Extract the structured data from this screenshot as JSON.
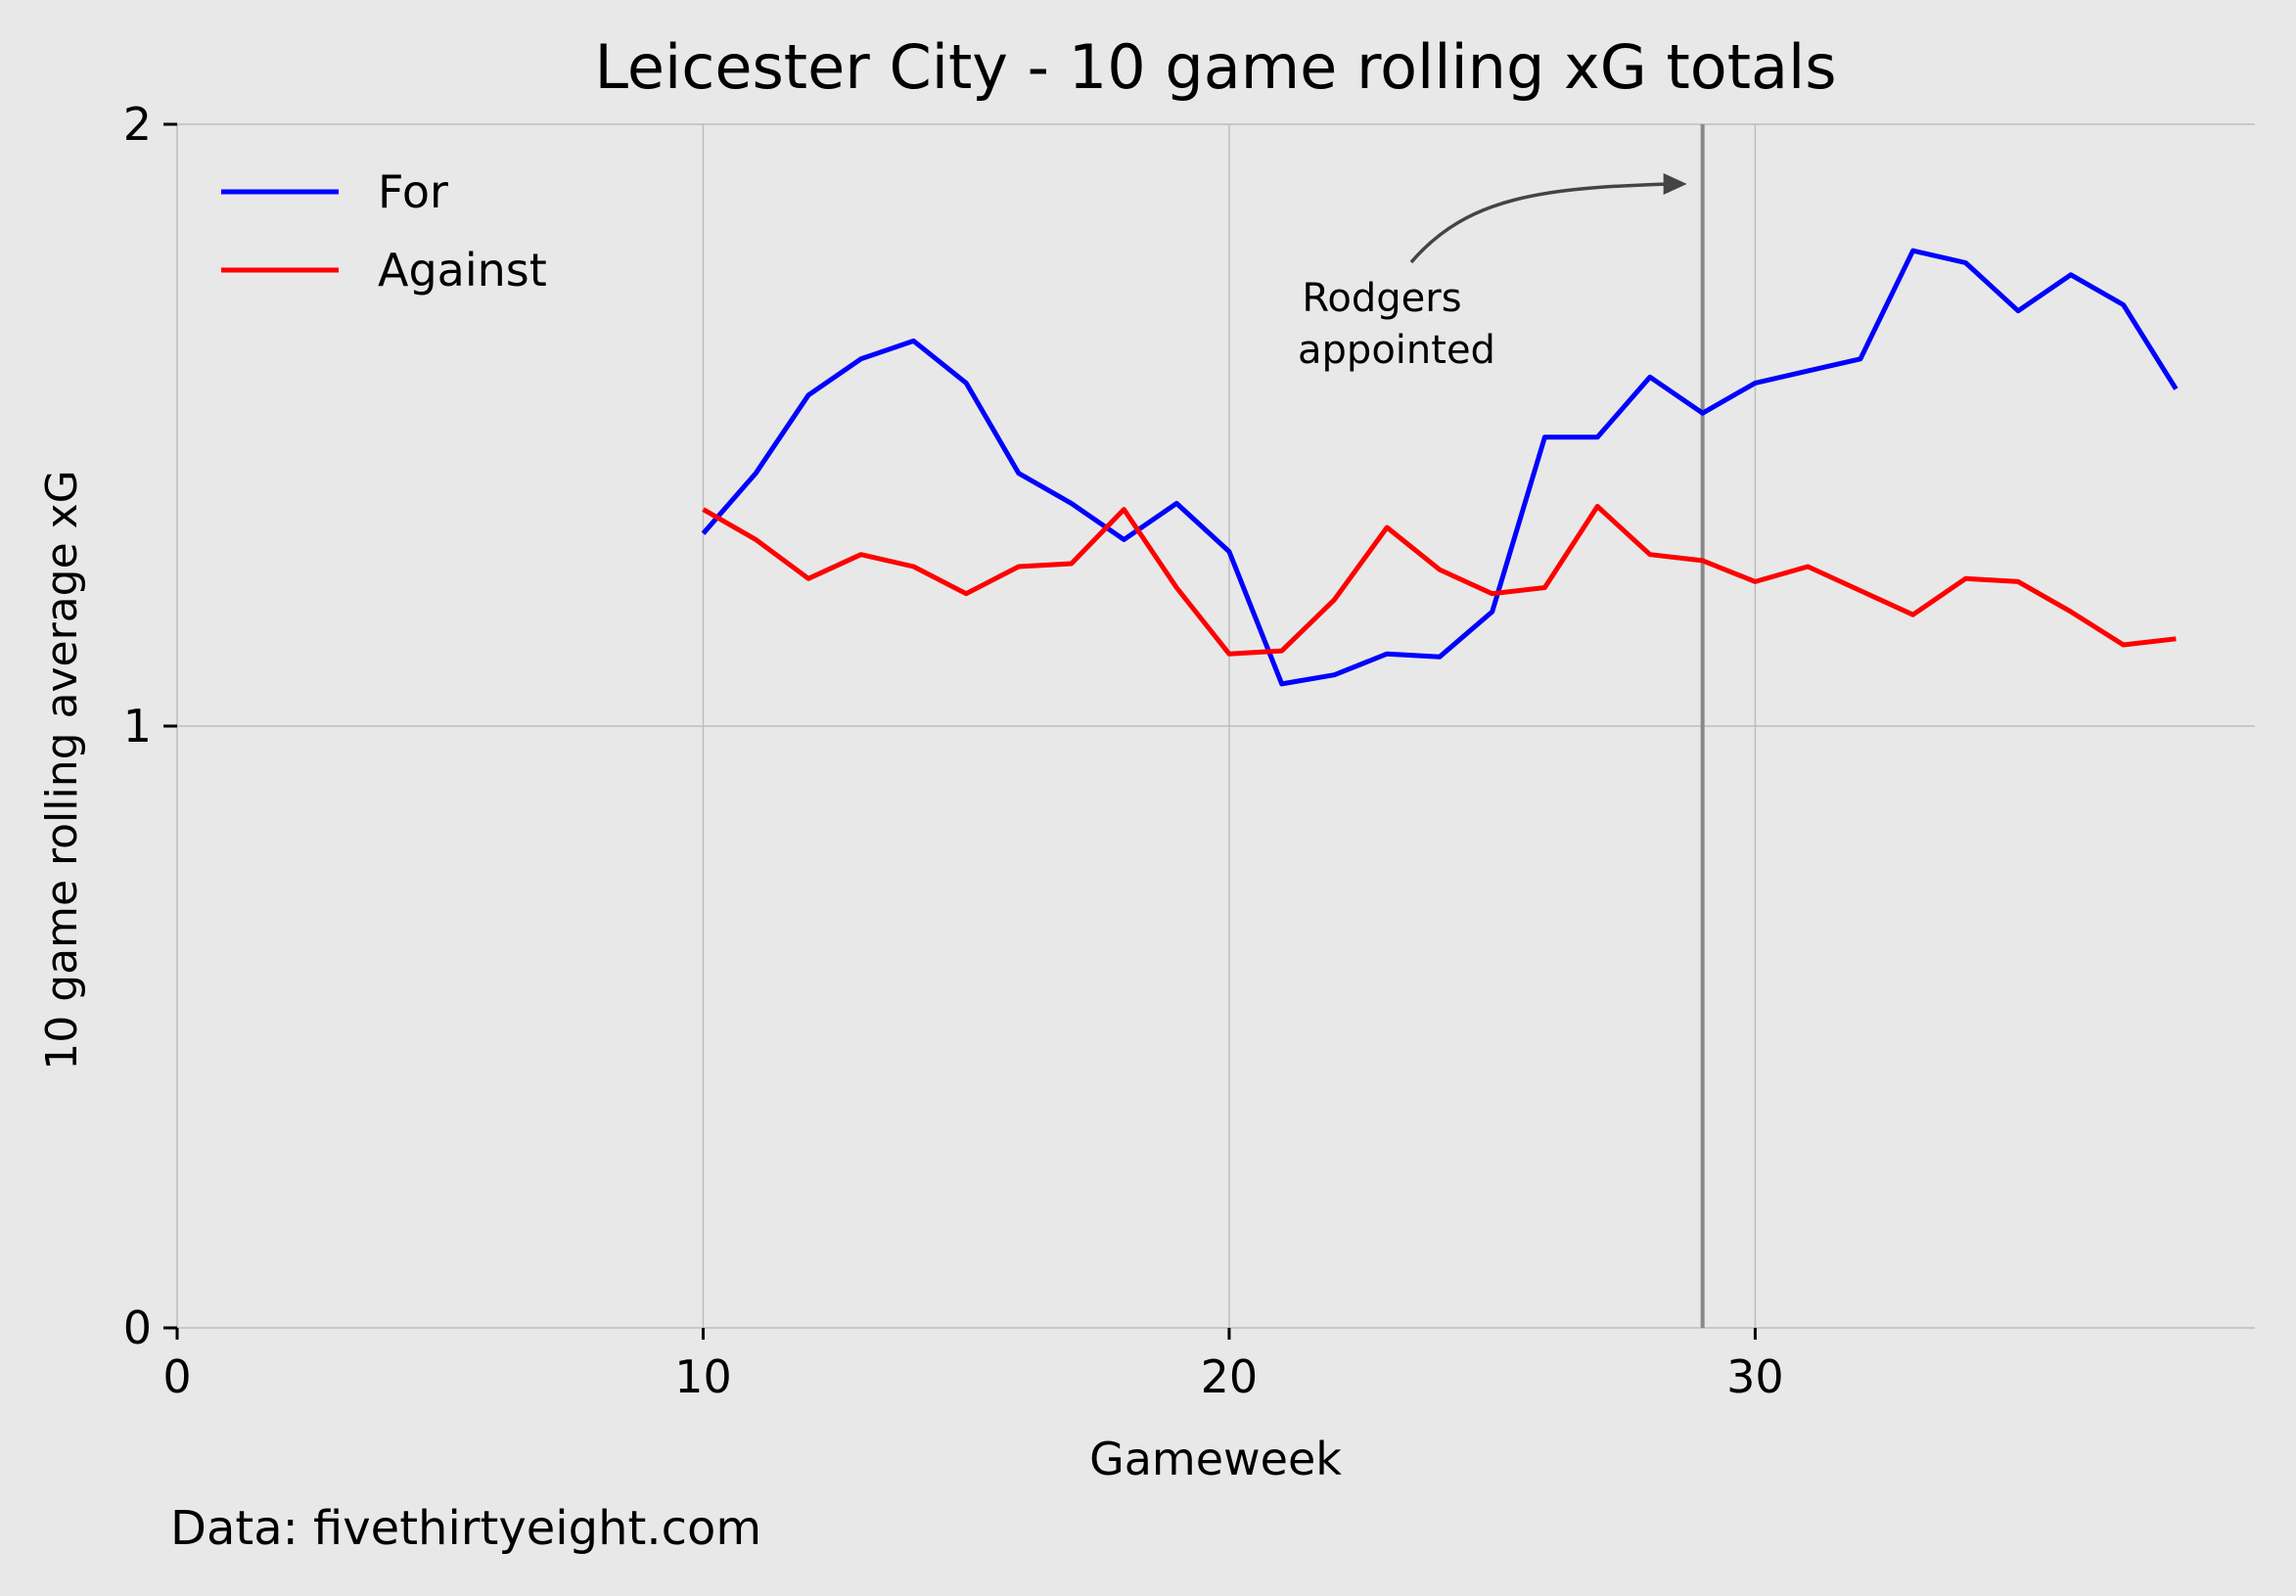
{
  "chart_data": {
    "type": "line",
    "title": "Leicester City - 10 game rolling xG totals",
    "xlabel": "Gameweek",
    "ylabel": "10 game rolling average xG",
    "xlim": [
      0,
      39.5
    ],
    "ylim": [
      0,
      2
    ],
    "xticks": [
      0,
      10,
      20,
      30
    ],
    "yticks": [
      0,
      1,
      2
    ],
    "grid": true,
    "legend_position": "top-left",
    "x": [
      10,
      11,
      12,
      13,
      14,
      15,
      16,
      17,
      18,
      19,
      20,
      21,
      22,
      23,
      24,
      25,
      26,
      27,
      28,
      29,
      30,
      31,
      32,
      33,
      34,
      35,
      36,
      37,
      38
    ],
    "series": [
      {
        "name": "For",
        "color": "#0000ff",
        "values": [
          1.32,
          1.42,
          1.55,
          1.61,
          1.64,
          1.57,
          1.42,
          1.37,
          1.31,
          1.37,
          1.29,
          1.07,
          1.085,
          1.12,
          1.115,
          1.19,
          1.48,
          1.48,
          1.58,
          1.52,
          1.57,
          1.59,
          1.61,
          1.79,
          1.77,
          1.69,
          1.75,
          1.7,
          1.56
        ]
      },
      {
        "name": "Against",
        "color": "#ff0000",
        "values": [
          1.36,
          1.31,
          1.245,
          1.285,
          1.265,
          1.22,
          1.265,
          1.27,
          1.36,
          1.23,
          1.12,
          1.125,
          1.21,
          1.33,
          1.26,
          1.22,
          1.23,
          1.365,
          1.285,
          1.275,
          1.24,
          1.265,
          1.225,
          1.185,
          1.245,
          1.24,
          1.19,
          1.135,
          1.145
        ]
      }
    ],
    "vline": {
      "x": 29,
      "color": "#888888"
    },
    "annotation": {
      "line1": "Rodgers",
      "line2": "appointed"
    },
    "footer": "Data: fivethirtyeight.com"
  }
}
